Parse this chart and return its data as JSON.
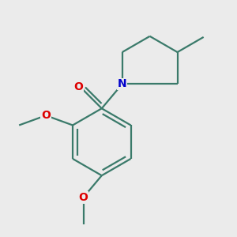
{
  "background_color": "#ebebeb",
  "bond_color": "#3a7a6a",
  "atom_colors": {
    "O": "#dd0000",
    "N": "#0000cc",
    "C": "#000000"
  },
  "bond_width": 1.6,
  "figsize": [
    3.0,
    3.0
  ],
  "dpi": 100
}
